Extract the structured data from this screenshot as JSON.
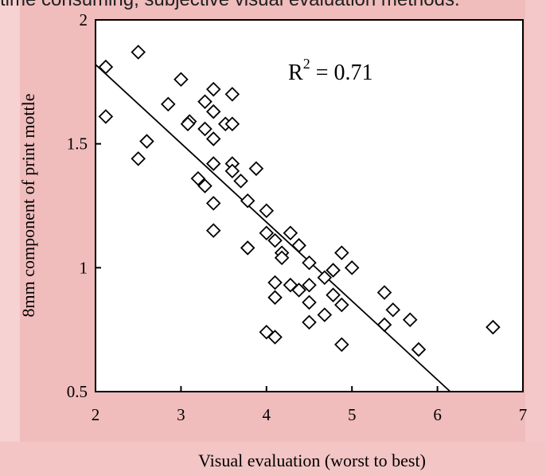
{
  "page": {
    "caption_fragment": "time consuming, subjective visual evaluation methods."
  },
  "chart_data": {
    "type": "scatter",
    "title": "",
    "xlabel": "Visual evaluation (worst to best)",
    "ylabel": "8mm component of print mottle",
    "xlim": [
      2,
      7
    ],
    "ylim": [
      0.5,
      2
    ],
    "xticks": [
      2,
      3,
      4,
      5,
      6,
      7
    ],
    "xtick_labels": [
      "2",
      "3",
      "4",
      "5",
      "6",
      "7"
    ],
    "yticks": [
      0.5,
      1,
      1.5,
      2
    ],
    "ytick_labels": [
      "0.5",
      "1",
      "1.5",
      "2"
    ],
    "annotation": {
      "base": "R",
      "sup": "2",
      "tail": " = 0.71"
    },
    "marker": "diamond-open",
    "grid": false,
    "points": [
      [
        2.12,
        1.81
      ],
      [
        2.5,
        1.87
      ],
      [
        2.12,
        1.61
      ],
      [
        2.5,
        1.44
      ],
      [
        2.6,
        1.51
      ],
      [
        2.85,
        1.66
      ],
      [
        3.0,
        1.76
      ],
      [
        3.1,
        1.59
      ],
      [
        3.08,
        1.58
      ],
      [
        3.2,
        1.36
      ],
      [
        3.28,
        1.67
      ],
      [
        3.28,
        1.56
      ],
      [
        3.28,
        1.33
      ],
      [
        3.38,
        1.72
      ],
      [
        3.38,
        1.63
      ],
      [
        3.38,
        1.52
      ],
      [
        3.38,
        1.42
      ],
      [
        3.38,
        1.26
      ],
      [
        3.38,
        1.15
      ],
      [
        3.52,
        1.58
      ],
      [
        3.6,
        1.7
      ],
      [
        3.6,
        1.58
      ],
      [
        3.6,
        1.42
      ],
      [
        3.6,
        1.39
      ],
      [
        3.7,
        1.35
      ],
      [
        3.78,
        1.27
      ],
      [
        3.78,
        1.08
      ],
      [
        3.88,
        1.4
      ],
      [
        4.0,
        1.23
      ],
      [
        4.0,
        1.14
      ],
      [
        4.1,
        1.11
      ],
      [
        4.18,
        1.06
      ],
      [
        4.18,
        1.04
      ],
      [
        4.28,
        1.14
      ],
      [
        4.38,
        1.09
      ],
      [
        4.1,
        0.94
      ],
      [
        4.1,
        0.88
      ],
      [
        4.28,
        0.93
      ],
      [
        4.38,
        0.91
      ],
      [
        4.5,
        1.02
      ],
      [
        4.5,
        0.93
      ],
      [
        4.5,
        0.86
      ],
      [
        4.5,
        0.78
      ],
      [
        4.68,
        0.96
      ],
      [
        4.78,
        0.99
      ],
      [
        4.78,
        0.89
      ],
      [
        4.68,
        0.81
      ],
      [
        4.88,
        0.85
      ],
      [
        4.88,
        1.06
      ],
      [
        5.0,
        1.0
      ],
      [
        4.0,
        0.74
      ],
      [
        4.1,
        0.72
      ],
      [
        4.88,
        0.69
      ],
      [
        5.38,
        0.9
      ],
      [
        5.48,
        0.83
      ],
      [
        5.38,
        0.77
      ],
      [
        5.68,
        0.79
      ],
      [
        5.78,
        0.67
      ],
      [
        6.65,
        0.76
      ]
    ],
    "fit_line": {
      "x": [
        2.0,
        6.15
      ],
      "y": [
        1.82,
        0.5
      ]
    }
  },
  "colors": {
    "bg_pink": "#f0bcbc",
    "bg_pink_light": "#f6d2d2",
    "plot_bg": "#ffffff",
    "ink": "#000000"
  }
}
